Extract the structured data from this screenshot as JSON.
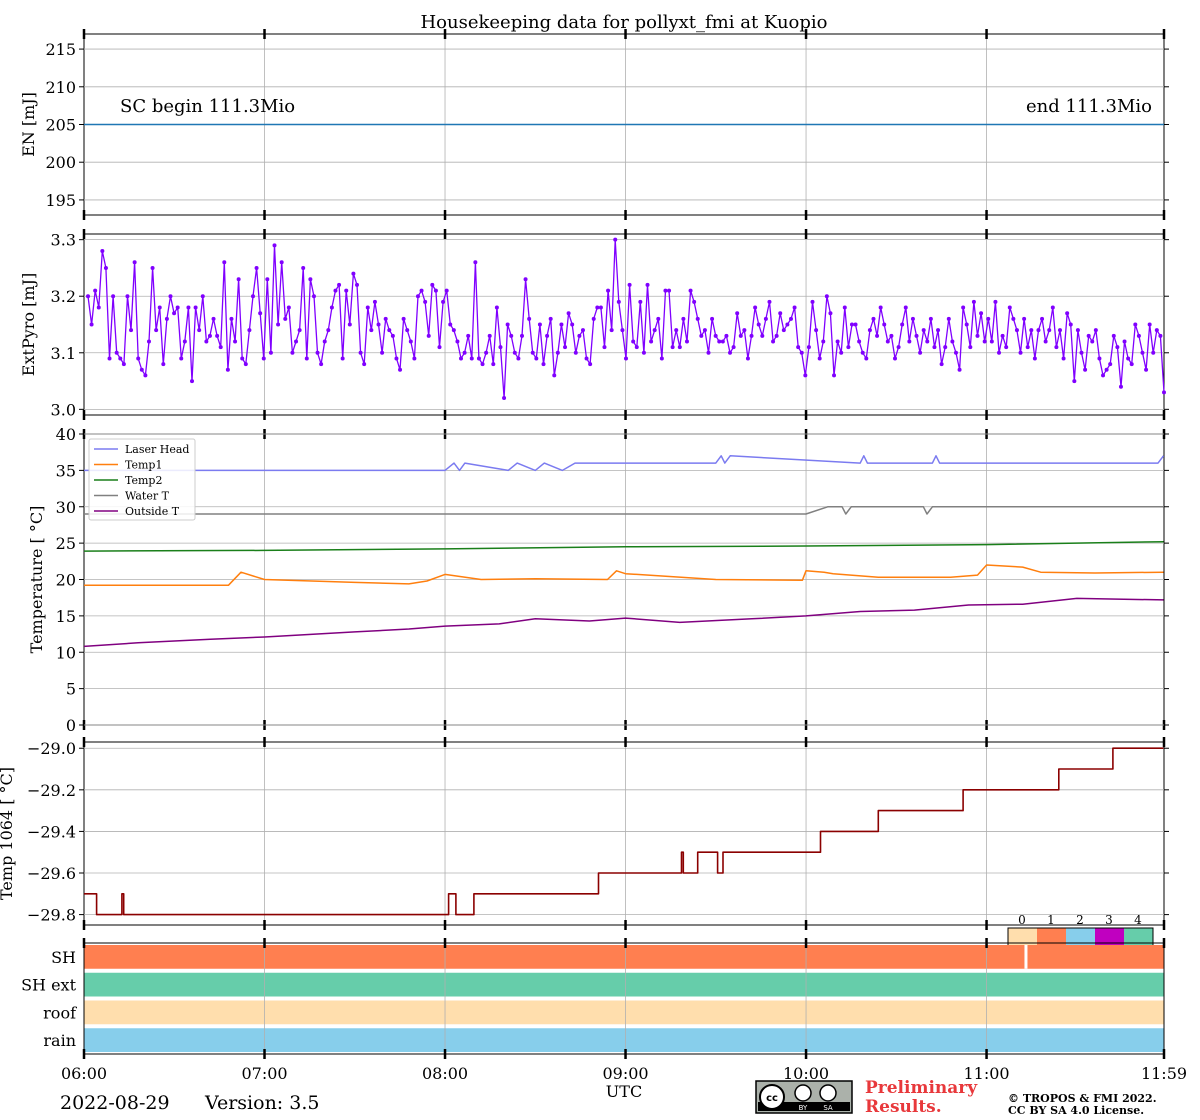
{
  "title": "Housekeeping data for pollyxt_fmi at Kuopio",
  "time_axis": {
    "ticks": [
      "06:00",
      "07:00",
      "08:00",
      "09:00",
      "10:00",
      "11:00",
      "11:59"
    ],
    "label": "UTC",
    "range_hours": [
      6.0,
      11.983
    ]
  },
  "panels": {
    "en": {
      "ylabel": "EN [mJ]",
      "yticks": [
        "195",
        "200",
        "205",
        "210",
        "215"
      ],
      "ylim": [
        193,
        217
      ],
      "value": 205,
      "color": "#1f77b4",
      "text_left": "SC begin 111.3Mio",
      "text_right": "end 111.3Mio"
    },
    "pyro": {
      "ylabel": "ExtPyro [mJ]",
      "yticks": [
        "3.0",
        "3.1",
        "3.2",
        "3.3"
      ],
      "ylim": [
        2.99,
        3.31
      ],
      "color": "#8000ff"
    },
    "temp": {
      "ylabel": "Temperature [$^\\circ C$]",
      "ylabel_display": "Temperature [ °C]",
      "yticks": [
        "0",
        "5",
        "10",
        "15",
        "20",
        "25",
        "30",
        "35",
        "40"
      ],
      "ylim": [
        0,
        40
      ],
      "legend": [
        "Laser Head",
        "Temp1",
        "Temp2",
        "Water T",
        "Outside T"
      ]
    },
    "t1064": {
      "ylabel": "Temp 1064 [ °C]",
      "yticks": [
        "−29.8",
        "−29.6",
        "−29.4",
        "−29.2",
        "−29.0"
      ],
      "ylim": [
        -29.85,
        -28.97
      ],
      "color": "#8b0000"
    },
    "status": {
      "rows": [
        "SH",
        "SH ext",
        "roof",
        "rain"
      ],
      "colorbar_labels": [
        "0",
        "1",
        "2",
        "3",
        "4"
      ],
      "colorbar_colors": [
        "#ffdead",
        "#ff7f50",
        "#87ceeb",
        "#c000c0",
        "#66cdaa"
      ],
      "row_colors": [
        "#ff7f50",
        "#66cdaa",
        "#ffdead",
        "#87ceeb"
      ]
    }
  },
  "footer": {
    "date": "2022-08-29",
    "version": "Version: 3.5",
    "preliminary_1": "Preliminary",
    "preliminary_2": "Results.",
    "copyright_1": "© TROPOS & FMI 2022.",
    "copyright_2": "CC BY SA 4.0 License.",
    "cc_badge": "cc BY SA"
  },
  "chart_data": [
    {
      "type": "line",
      "title": "Housekeeping data for pollyxt_fmi at Kuopio",
      "ylabel": "EN [mJ]",
      "x_range": [
        "06:00",
        "11:59"
      ],
      "series": [
        {
          "values": [
            205,
            205
          ]
        }
      ],
      "annotations": [
        "SC begin 111.3Mio",
        "end 111.3Mio"
      ],
      "ylim": [
        193,
        217
      ]
    },
    {
      "type": "line",
      "ylabel": "ExtPyro [mJ]",
      "ylim": [
        2.99,
        3.31
      ],
      "x_start_hour": 6.0,
      "x_step_hours": 0.02,
      "series": [
        {
          "values": [
            3.2,
            3.15,
            3.21,
            3.18,
            3.28,
            3.25,
            3.09,
            3.2,
            3.1,
            3.09,
            3.08,
            3.2,
            3.14,
            3.26,
            3.09,
            3.07,
            3.06,
            3.12,
            3.25,
            3.14,
            3.18,
            3.08,
            3.16,
            3.2,
            3.17,
            3.18,
            3.09,
            3.12,
            3.18,
            3.05,
            3.18,
            3.14,
            3.2,
            3.12,
            3.13,
            3.16,
            3.13,
            3.11,
            3.26,
            3.07,
            3.16,
            3.12,
            3.23,
            3.09,
            3.08,
            3.14,
            3.2,
            3.25,
            3.17,
            3.09,
            3.23,
            3.1,
            3.29,
            3.15,
            3.26,
            3.16,
            3.18,
            3.1,
            3.12,
            3.14,
            3.25,
            3.09,
            3.23,
            3.2,
            3.1,
            3.08,
            3.12,
            3.14,
            3.18,
            3.21,
            3.22,
            3.09,
            3.21,
            3.15,
            3.24,
            3.22,
            3.1,
            3.08,
            3.18,
            3.14,
            3.19,
            3.15,
            3.1,
            3.16,
            3.14,
            3.13,
            3.09,
            3.07,
            3.16,
            3.14,
            3.12,
            3.09,
            3.2,
            3.21,
            3.19,
            3.13,
            3.22,
            3.21,
            3.11,
            3.19,
            3.21,
            3.15,
            3.14,
            3.12,
            3.09,
            3.1,
            3.13,
            3.09,
            3.26,
            3.09,
            3.08,
            3.1,
            3.13,
            3.08,
            3.18,
            3.11,
            3.02,
            3.15,
            3.13,
            3.1,
            3.09,
            3.13,
            3.23,
            3.16,
            3.1,
            3.09,
            3.15,
            3.08,
            3.13,
            3.16,
            3.06,
            3.1,
            3.15,
            3.11,
            3.17,
            3.15,
            3.1,
            3.13,
            3.14,
            3.09,
            3.08,
            3.16,
            3.18,
            3.18,
            3.11,
            3.21,
            3.14,
            3.3,
            3.19,
            3.14,
            3.09,
            3.22,
            3.12,
            3.11,
            3.19,
            3.1,
            3.22,
            3.12,
            3.14,
            3.16,
            3.09,
            3.21,
            3.21,
            3.11,
            3.14,
            3.11,
            3.16,
            3.12,
            3.21,
            3.19,
            3.16,
            3.13,
            3.14,
            3.1,
            3.16,
            3.13,
            3.12,
            3.12,
            3.13,
            3.1,
            3.11,
            3.17,
            3.13,
            3.14,
            3.09,
            3.13,
            3.18,
            3.15,
            3.13,
            3.16,
            3.19,
            3.12,
            3.13,
            3.17,
            3.14,
            3.15,
            3.16,
            3.18,
            3.11,
            3.1,
            3.06,
            3.11,
            3.19,
            3.14,
            3.09,
            3.12,
            3.2,
            3.17,
            3.06,
            3.12,
            3.1,
            3.18,
            3.11,
            3.15,
            3.15,
            3.12,
            3.1,
            3.09,
            3.14,
            3.16,
            3.13,
            3.18,
            3.15,
            3.12,
            3.13,
            3.09,
            3.11,
            3.15,
            3.18,
            3.12,
            3.16,
            3.13,
            3.1,
            3.14,
            3.12,
            3.16,
            3.11,
            3.14,
            3.08,
            3.11,
            3.16,
            3.12,
            3.1,
            3.07,
            3.18,
            3.15,
            3.11,
            3.19,
            3.13,
            3.17,
            3.12,
            3.16,
            3.12,
            3.19,
            3.1,
            3.13,
            3.11,
            3.18,
            3.16,
            3.14,
            3.1,
            3.16,
            3.11,
            3.14,
            3.09,
            3.14,
            3.16,
            3.12,
            3.14,
            3.18,
            3.11,
            3.14,
            3.09,
            3.17,
            3.15,
            3.05,
            3.14,
            3.1,
            3.07,
            3.13,
            3.12,
            3.14,
            3.09,
            3.06,
            3.07,
            3.08,
            3.13,
            3.11,
            3.04,
            3.12,
            3.09,
            3.08,
            3.15,
            3.13,
            3.1,
            3.07,
            3.15,
            3.1,
            3.14,
            3.13,
            3.03
          ]
        }
      ]
    },
    {
      "type": "line",
      "ylabel": "Temperature [ °C]",
      "ylim": [
        0,
        40
      ],
      "legend_position": "upper left",
      "series": [
        {
          "name": "Laser Head",
          "color": "#7b7bf0",
          "x": [
            6.0,
            7.15,
            7.17,
            8.0,
            8.05,
            8.08,
            8.11,
            8.35,
            8.4,
            8.5,
            8.55,
            8.65,
            8.72,
            8.73,
            9.5,
            9.53,
            9.55,
            9.58,
            10.3,
            10.32,
            10.34,
            10.7,
            10.72,
            10.74,
            11.95,
            11.98
          ],
          "values": [
            35,
            35,
            35,
            35,
            36,
            35,
            36,
            35,
            36,
            35,
            36,
            35,
            36,
            36,
            36,
            37,
            36,
            37,
            36,
            37,
            36,
            36,
            37,
            36,
            36,
            37
          ]
        },
        {
          "name": "Temp1",
          "color": "#ff7f0e",
          "x": [
            6.0,
            6.4,
            6.8,
            6.87,
            7.0,
            7.5,
            7.8,
            7.9,
            8.0,
            8.2,
            8.5,
            8.9,
            8.95,
            9.0,
            9.5,
            9.98,
            10.0,
            10.1,
            10.15,
            10.4,
            10.8,
            10.95,
            11.0,
            11.2,
            11.3,
            11.6,
            11.98
          ],
          "values": [
            19.2,
            19.2,
            19.2,
            21.0,
            20.0,
            19.6,
            19.4,
            19.8,
            20.7,
            20.0,
            20.1,
            20.0,
            21.2,
            20.8,
            20.0,
            19.9,
            21.2,
            21.0,
            20.8,
            20.3,
            20.3,
            20.6,
            22.0,
            21.7,
            21.0,
            20.9,
            21.0
          ]
        },
        {
          "name": "Temp2",
          "color": "#1a7f1a",
          "x": [
            6.0,
            7.0,
            8.0,
            9.0,
            10.0,
            11.0,
            11.98
          ],
          "values": [
            23.9,
            24.0,
            24.2,
            24.5,
            24.6,
            24.8,
            25.2
          ]
        },
        {
          "name": "Water T",
          "color": "#808080",
          "x": [
            6.0,
            10.0,
            10.12,
            10.2,
            10.22,
            10.25,
            10.3,
            10.65,
            10.67,
            10.7,
            11.98
          ],
          "values": [
            29,
            29,
            30,
            30,
            29,
            30,
            30,
            30,
            29,
            30,
            30
          ]
        },
        {
          "name": "Outside T",
          "color": "#800080",
          "x": [
            6.0,
            6.3,
            6.7,
            7.0,
            7.5,
            7.8,
            8.0,
            8.3,
            8.5,
            8.8,
            9.0,
            9.3,
            9.7,
            10.0,
            10.3,
            10.6,
            10.9,
            11.2,
            11.5,
            11.98
          ],
          "values": [
            10.8,
            11.3,
            11.8,
            12.1,
            12.8,
            13.2,
            13.6,
            13.9,
            14.6,
            14.3,
            14.7,
            14.1,
            14.6,
            15.0,
            15.6,
            15.8,
            16.5,
            16.6,
            17.4,
            17.2
          ]
        }
      ]
    },
    {
      "type": "line",
      "ylabel": "Temp 1064 [ °C]",
      "ylim": [
        -29.85,
        -28.97
      ],
      "x": [
        6.0,
        6.05,
        6.07,
        6.2,
        6.21,
        6.22,
        7.0,
        7.5,
        8.0,
        8.02,
        8.05,
        8.06,
        8.14,
        8.16,
        8.6,
        8.8,
        8.85,
        9.3,
        9.31,
        9.32,
        9.38,
        9.4,
        9.42,
        9.5,
        9.51,
        9.54,
        10.0,
        10.08,
        10.35,
        10.4,
        10.5,
        10.85,
        10.87,
        11.3,
        11.4,
        11.65,
        11.7,
        11.98
      ],
      "series": [
        {
          "values": [
            -29.7,
            -29.7,
            -29.8,
            -29.8,
            -29.7,
            -29.8,
            -29.8,
            -29.8,
            -29.8,
            -29.7,
            -29.7,
            -29.8,
            -29.8,
            -29.7,
            -29.7,
            -29.7,
            -29.6,
            -29.6,
            -29.5,
            -29.6,
            -29.6,
            -29.5,
            -29.5,
            -29.5,
            -29.6,
            -29.5,
            -29.5,
            -29.4,
            -29.4,
            -29.3,
            -29.3,
            -29.3,
            -29.2,
            -29.2,
            -29.1,
            -29.1,
            -29.0,
            -29.0
          ]
        }
      ]
    },
    {
      "type": "heatmap",
      "rows": [
        "SH",
        "SH ext",
        "roof",
        "rain"
      ],
      "row_values": [
        1,
        4,
        0,
        2
      ],
      "colorbar_ticks": [
        0,
        1,
        2,
        3,
        4
      ],
      "colorbar_colors": [
        "#ffdead",
        "#ff7f50",
        "#87ceeb",
        "#c000c0",
        "#66cdaa"
      ],
      "notes": "SH row shows a short gap near 11:12"
    }
  ]
}
